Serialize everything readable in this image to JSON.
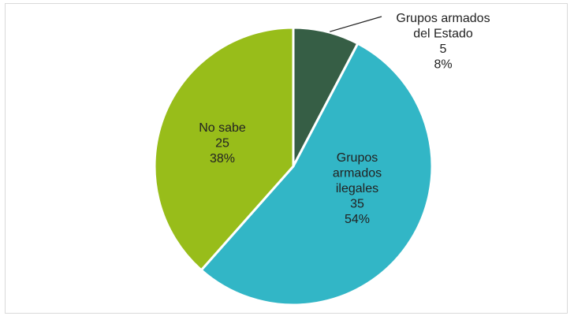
{
  "chart_data": {
    "type": "pie",
    "slices": [
      {
        "label": "Grupos armados del Estado",
        "label_lines": [
          "Grupos armados",
          "del Estado"
        ],
        "value": 5,
        "percent": "8%",
        "color": "#365e45"
      },
      {
        "label": "Grupos armados ilegales",
        "label_lines": [
          "Grupos",
          "armados",
          "ilegales"
        ],
        "value": 35,
        "percent": "54%",
        "color": "#32b6c6"
      },
      {
        "label": "No sabe",
        "label_lines": [
          "No sabe"
        ],
        "value": 25,
        "percent": "38%",
        "color": "#98bd1a"
      }
    ],
    "start_angle": "top",
    "direction": "clockwise",
    "data_labels": "category, value, percent",
    "legend": "none"
  }
}
